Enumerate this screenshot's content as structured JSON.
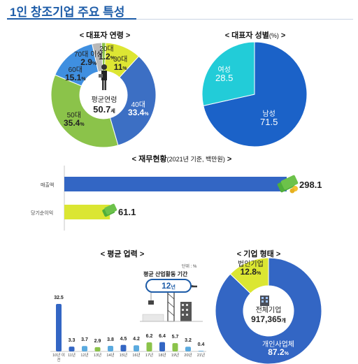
{
  "page_title": "1인 창조기업 주요 특성",
  "colors": {
    "title_blue": "#1d5ca8",
    "green": "#85c54a",
    "yellow": "#dbe632",
    "blue": "#3366c4",
    "cyan": "#22ccd8",
    "dark_blue": "#1b62c8"
  },
  "chart_data": [
    {
      "type": "pie",
      "title": "< 대표자 연령 >",
      "center_label": "평균연령",
      "center_value": "50.7",
      "center_unit": "세",
      "categories": [
        "20대",
        "30대",
        "40대",
        "50대",
        "60대",
        "70대 이상"
      ],
      "values": [
        1.2,
        11.0,
        33.4,
        35.4,
        15.1,
        2.9
      ],
      "unit": "%",
      "colors": [
        "#8bc34a",
        "#dde633",
        "#3c6fc4",
        "#8bc34a",
        "#3f8fe0",
        "#b8b8b8"
      ]
    },
    {
      "type": "pie",
      "title": "< 대표자 성별",
      "title_unit": "(%)",
      "title_close": " >",
      "categories": [
        "남성",
        "여성"
      ],
      "values": [
        71.5,
        28.5
      ],
      "colors": [
        "#1b62c8",
        "#22ccd8"
      ]
    },
    {
      "type": "bar",
      "title": "< 재무현황",
      "title_note": "(2021년 기준, 백만원)",
      "title_close": " >",
      "categories": [
        "매출액",
        "당기순이익"
      ],
      "values": [
        298.1,
        61.1
      ],
      "colors": [
        "#3366c4",
        "#dbe632"
      ]
    },
    {
      "type": "bar",
      "title": "< 평균 업력 >",
      "unit_note": "단위 : %",
      "annotation_title": "평균 산업활동 기간",
      "annotation_value": "12",
      "annotation_unit": "년",
      "categories": [
        "10년 이전",
        "11년",
        "12년",
        "13년",
        "14년",
        "15년",
        "16년",
        "17년",
        "18년",
        "19년",
        "20년",
        "21년"
      ],
      "values": [
        32.5,
        3.3,
        3.7,
        2.9,
        3.8,
        4.5,
        4.2,
        6.2,
        6.4,
        5.7,
        3.2,
        0.4
      ],
      "colors": [
        "#3366c4",
        "#3366c4",
        "#5aaadf",
        "#8bc34a",
        "#5aaadf",
        "#3366c4",
        "#5aaadf",
        "#8bc34a",
        "#3366c4",
        "#8bc34a",
        "#5aaadf",
        "#5aaadf"
      ]
    },
    {
      "type": "pie",
      "title": "< 기업 형태 >",
      "center_label": "전체기업",
      "center_value": "917,365",
      "center_unit": "개",
      "categories": [
        "법인기업",
        "개인사업체"
      ],
      "values": [
        12.8,
        87.2
      ],
      "unit": "%",
      "colors": [
        "#dbe632",
        "#3366c4"
      ]
    }
  ]
}
